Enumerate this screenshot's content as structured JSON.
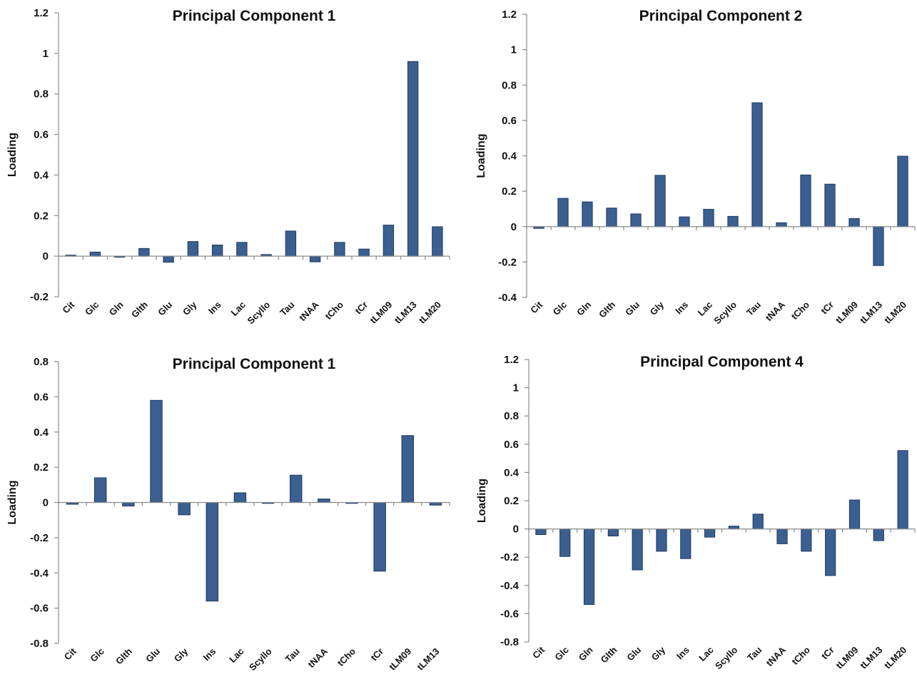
{
  "chart_data": [
    {
      "type": "bar",
      "title": "Principal Component 1",
      "ylabel": "Loading",
      "xlabel": "",
      "ylim": [
        -0.2,
        1.2
      ],
      "yticks": [
        -0.2,
        0,
        0.2,
        0.4,
        0.6,
        0.8,
        1,
        1.2
      ],
      "tick_labels": [
        "-0.2",
        "0",
        "0.2",
        "0.4",
        "0.6",
        "0.8",
        "1",
        "1.2"
      ],
      "categories": [
        "Cit",
        "Glc",
        "Gln",
        "Glth",
        "Glu",
        "Gly",
        "Ins",
        "Lac",
        "Scyllo",
        "Tau",
        "tNAA",
        "tCho",
        "tCr",
        "tLM09",
        "tLM13",
        "tLM20"
      ],
      "values": [
        0.005,
        0.02,
        -0.005,
        0.038,
        -0.03,
        0.072,
        0.055,
        0.068,
        0.008,
        0.124,
        -0.028,
        0.068,
        0.035,
        0.153,
        0.96,
        0.145
      ],
      "bar_color": "#3b5f91",
      "grid": false
    },
    {
      "type": "bar",
      "title": "Principal Component 2",
      "ylabel": "Loading",
      "xlabel": "",
      "ylim": [
        -0.4,
        1.2
      ],
      "yticks": [
        -0.4,
        -0.2,
        0,
        0.2,
        0.4,
        0.6,
        0.8,
        1,
        1.2
      ],
      "tick_labels": [
        "-0.4",
        "-0.2",
        "0",
        "0.2",
        "0.4",
        "0.6",
        "0.8",
        "1",
        "1.2"
      ],
      "categories": [
        "Cit",
        "Glc",
        "Gln",
        "Glth",
        "Glu",
        "Gly",
        "Ins",
        "Lac",
        "Scyllo",
        "Tau",
        "tNAA",
        "tCho",
        "tCr",
        "tLM09",
        "tLM13",
        "tLM20"
      ],
      "values": [
        -0.01,
        0.16,
        0.14,
        0.105,
        0.072,
        0.29,
        0.055,
        0.098,
        0.058,
        0.7,
        0.022,
        0.292,
        0.24,
        0.046,
        -0.22,
        0.398
      ],
      "bar_color": "#3b5f91",
      "grid": false
    },
    {
      "type": "bar",
      "title": "Principal Component 1",
      "ylabel": "Loading",
      "xlabel": "",
      "ylim": [
        -0.8,
        0.8
      ],
      "yticks": [
        -0.8,
        -0.6,
        -0.4,
        -0.2,
        0,
        0.2,
        0.4,
        0.6,
        0.8
      ],
      "tick_labels": [
        "-0.8",
        "-0.6",
        "-0.4",
        "-0.2",
        "0",
        "0.2",
        "0.4",
        "0.6",
        "0.8"
      ],
      "categories": [
        "Cit",
        "Glc",
        "Glth",
        "Glu",
        "Gly",
        "Ins",
        "Lac",
        "Scyllo",
        "Tau",
        "tNAA",
        "tCho",
        "tCr",
        "tLM09",
        "tLM13"
      ],
      "values": [
        -0.01,
        0.14,
        -0.02,
        0.58,
        -0.07,
        -0.56,
        0.055,
        -0.005,
        0.155,
        0.02,
        -0.005,
        -0.39,
        0.38,
        -0.015
      ],
      "bar_color": "#3b5f91",
      "grid": false
    },
    {
      "type": "bar",
      "title": "Principal Component 4",
      "ylabel": "Loading",
      "xlabel": "",
      "ylim": [
        -0.8,
        1.2
      ],
      "yticks": [
        -0.8,
        -0.6,
        -0.4,
        -0.2,
        0,
        0.2,
        0.4,
        0.6,
        0.8,
        1,
        1.2
      ],
      "tick_labels": [
        "-0.8",
        "-0.6",
        "-0.4",
        "-0.2",
        "0",
        "0.2",
        "0.4",
        "0.6",
        "0.8",
        "1",
        "1.2"
      ],
      "categories": [
        "Cit",
        "Glc",
        "Gln",
        "Glth",
        "Glu",
        "Gly",
        "Ins",
        "Lac",
        "Scyllo",
        "Tau",
        "tNAA",
        "tCho",
        "tCr",
        "tLM09",
        "tLM13",
        "tLM20"
      ],
      "values": [
        -0.04,
        -0.195,
        -0.535,
        -0.05,
        -0.29,
        -0.158,
        -0.21,
        -0.058,
        0.02,
        0.105,
        -0.105,
        -0.158,
        -0.33,
        0.205,
        -0.083,
        0.555
      ],
      "bar_color": "#3b5f91",
      "grid": false
    }
  ]
}
